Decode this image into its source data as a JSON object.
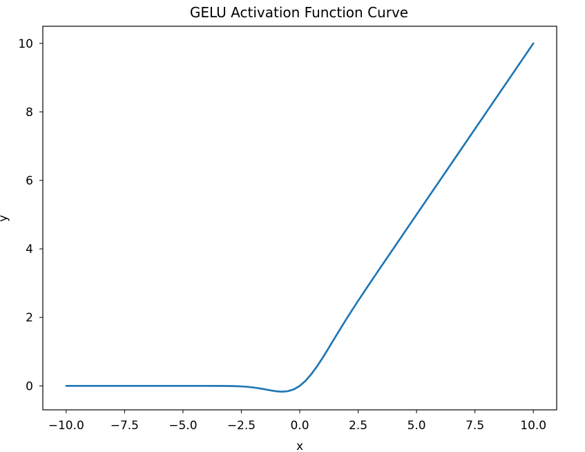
{
  "chart_data": {
    "type": "line",
    "title": "GELU Activation Function Curve",
    "xlabel": "x",
    "ylabel": "y",
    "xlim": [
      -11.0,
      11.0
    ],
    "ylim": [
      -0.7,
      10.5
    ],
    "grid": false,
    "legend": "none",
    "x_ticks": [
      -10.0,
      -7.5,
      -5.0,
      -2.5,
      0.0,
      2.5,
      5.0,
      7.5,
      10.0
    ],
    "x_tick_labels": [
      "−10.0",
      "−7.5",
      "−5.0",
      "−2.5",
      "0.0",
      "2.5",
      "5.0",
      "7.5",
      "10.0"
    ],
    "y_ticks": [
      0,
      2,
      4,
      6,
      8,
      10
    ],
    "y_tick_labels": [
      "0",
      "2",
      "4",
      "6",
      "8",
      "10"
    ],
    "series": [
      {
        "color": "#1f77b4",
        "x": [
          -10.0,
          -9.0,
          -8.0,
          -7.0,
          -6.0,
          -5.0,
          -4.0,
          -3.5,
          -3.0,
          -2.75,
          -2.5,
          -2.25,
          -2.0,
          -1.75,
          -1.5,
          -1.25,
          -1.0,
          -0.75,
          -0.5,
          -0.25,
          0.0,
          0.25,
          0.5,
          0.75,
          1.0,
          1.25,
          1.5,
          1.75,
          2.0,
          2.25,
          2.5,
          2.75,
          3.0,
          3.5,
          4.0,
          5.0,
          6.0,
          7.0,
          8.0,
          9.0,
          10.0
        ],
        "y": [
          0.0,
          0.0,
          0.0,
          0.0,
          0.0,
          0.0,
          -0.0001,
          -0.0008,
          -0.004,
          -0.0082,
          -0.0155,
          -0.0275,
          -0.0455,
          -0.0702,
          -0.1002,
          -0.132,
          -0.1587,
          -0.17,
          -0.1543,
          -0.1003,
          0.0,
          0.1497,
          0.3457,
          0.58,
          0.8413,
          1.118,
          1.3998,
          1.6798,
          1.9545,
          2.2225,
          2.4845,
          2.7418,
          2.996,
          3.4992,
          3.9999,
          5.0,
          6.0,
          7.0,
          8.0,
          9.0,
          10.0
        ]
      }
    ]
  }
}
